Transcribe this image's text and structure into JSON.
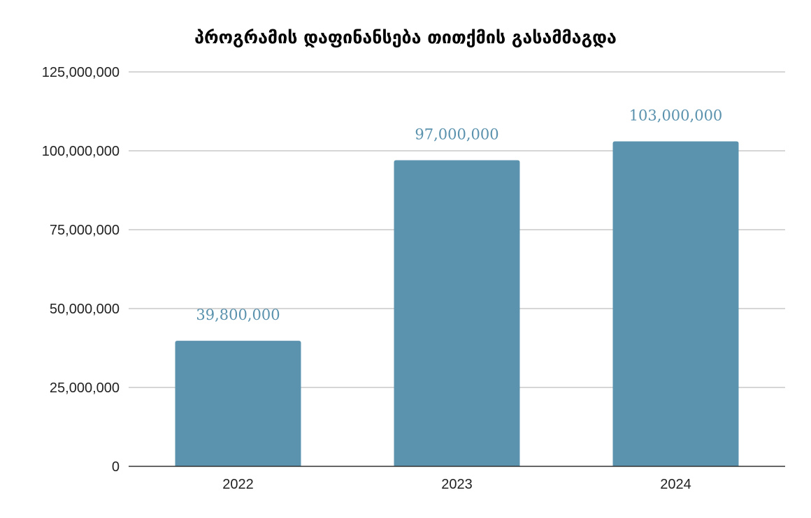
{
  "chart_data": {
    "type": "bar",
    "title": "პროგრამის დაფინანსება თითქმის გასამმაგდა",
    "xlabel": "",
    "ylabel": "",
    "categories": [
      "2022",
      "2023",
      "2024"
    ],
    "values": [
      39800000,
      97000000,
      103000000
    ],
    "data_labels": [
      "39,800,000",
      "97,000,000",
      "103,000,000"
    ],
    "ylim": [
      0,
      125000000
    ],
    "yticks": [
      0,
      25000000,
      50000000,
      75000000,
      100000000,
      125000000
    ],
    "ytick_labels": [
      "0",
      "25,000,000",
      "50,000,000",
      "75,000,000",
      "100,000,000",
      "125,000,000"
    ],
    "grid": true,
    "legend": "none",
    "bar_color": "#5b92ae",
    "label_color": "#5a92ae"
  }
}
